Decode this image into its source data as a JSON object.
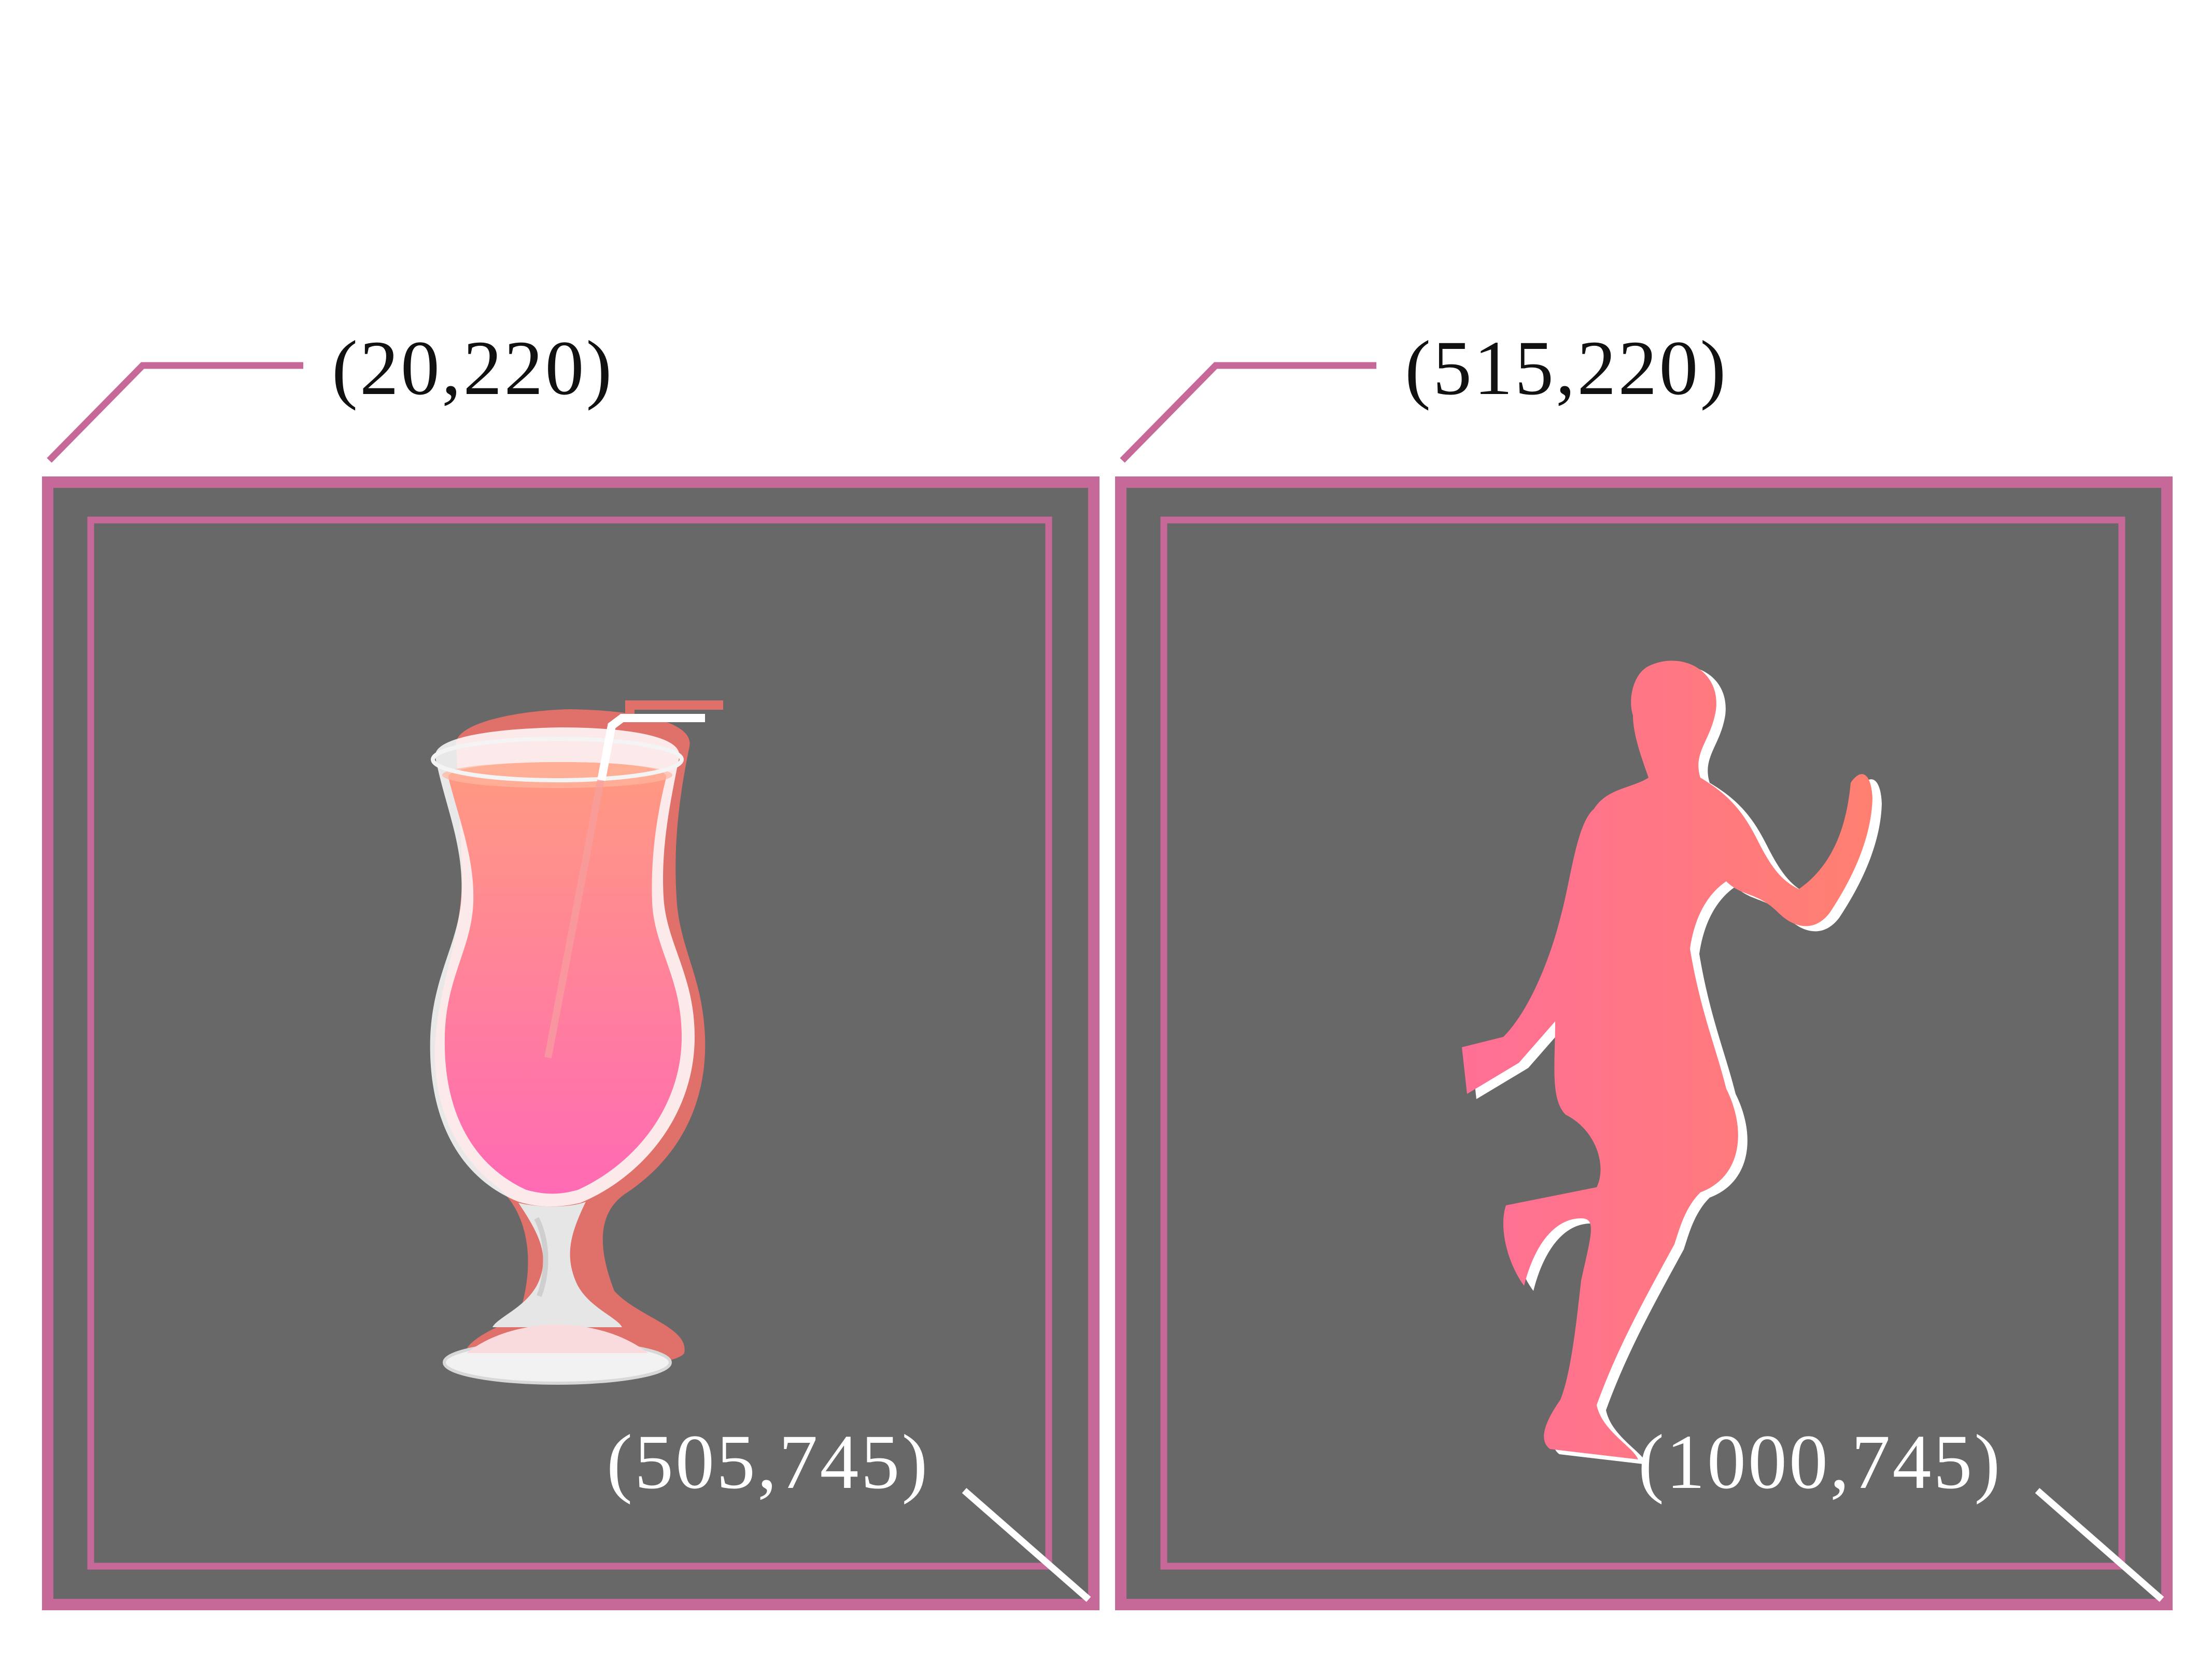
{
  "colors": {
    "background": "#ffffff",
    "frame": "#c76998",
    "panel": "#686868",
    "label_dark": "#111111",
    "label_light": "#ffffff",
    "drink_top": "#ff9a80",
    "drink_bottom": "#ff6ab4",
    "shadow": "#e0706a",
    "silhouette_left": "#ff6f96",
    "silhouette_right": "#ff8070"
  },
  "panels": [
    {
      "name": "cocktail",
      "icon": "cocktail-glass-icon",
      "top_left_label": "(20,220)",
      "bottom_right_label": "(505,745)"
    },
    {
      "name": "dancer",
      "icon": "dancing-woman-silhouette-icon",
      "top_left_label": "(515,220)",
      "bottom_right_label": "(1000,745)"
    }
  ]
}
